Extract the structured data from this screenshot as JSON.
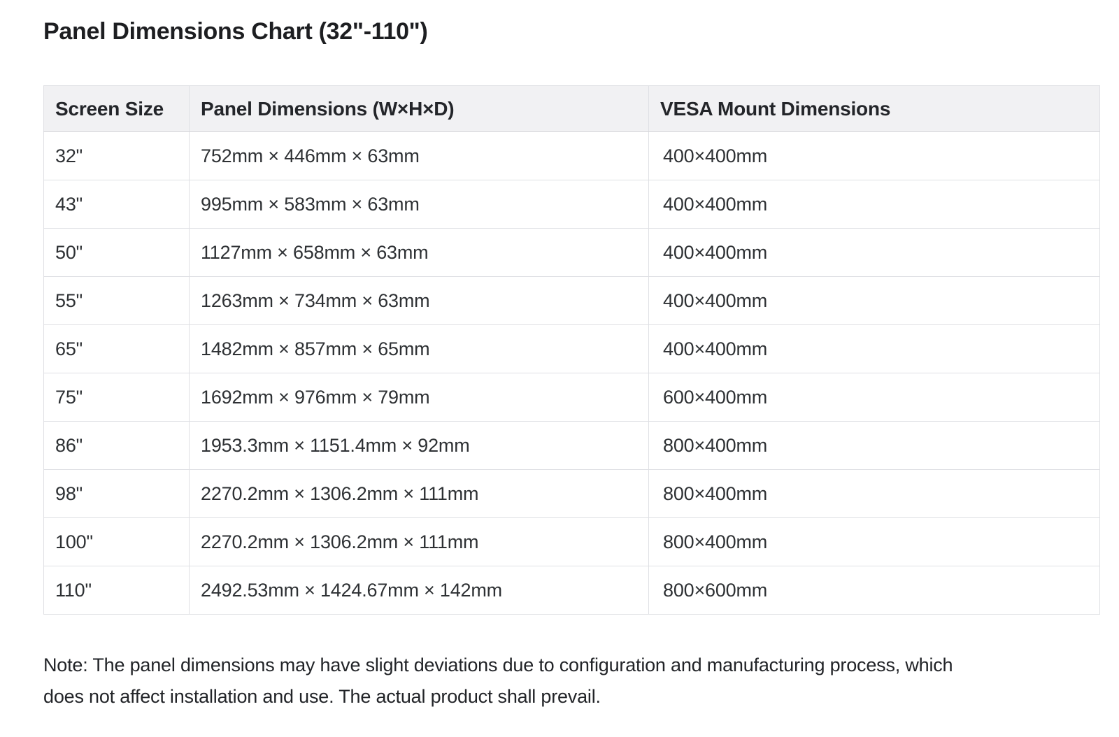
{
  "page": {
    "title": "Panel Dimensions Chart (32\"-110\")",
    "note_line1": "Note: The panel dimensions may have slight deviations due to configuration and manufacturing process, which",
    "note_line2": "does not affect installation and use. The actual product shall prevail."
  },
  "table": {
    "columns": [
      "Screen Size",
      "Panel Dimensions (W×H×D)",
      "VESA Mount Dimensions"
    ],
    "rows": [
      {
        "screen_size": "32\"",
        "panel_dimensions": "752mm × 446mm × 63mm",
        "vesa_mount": "400×400mm"
      },
      {
        "screen_size": "43\"",
        "panel_dimensions": "995mm × 583mm × 63mm",
        "vesa_mount": "400×400mm"
      },
      {
        "screen_size": "50\"",
        "panel_dimensions": "1127mm × 658mm × 63mm",
        "vesa_mount": "400×400mm"
      },
      {
        "screen_size": "55\"",
        "panel_dimensions": "1263mm × 734mm × 63mm",
        "vesa_mount": "400×400mm"
      },
      {
        "screen_size": "65\"",
        "panel_dimensions": "1482mm × 857mm × 65mm",
        "vesa_mount": "400×400mm"
      },
      {
        "screen_size": "75\"",
        "panel_dimensions": "1692mm × 976mm × 79mm",
        "vesa_mount": "600×400mm"
      },
      {
        "screen_size": "86\"",
        "panel_dimensions": "1953.3mm × 1151.4mm × 92mm",
        "vesa_mount": "800×400mm"
      },
      {
        "screen_size": "98\"",
        "panel_dimensions": "2270.2mm × 1306.2mm × 111mm",
        "vesa_mount": "800×400mm"
      },
      {
        "screen_size": "100\"",
        "panel_dimensions": "2270.2mm × 1306.2mm × 111mm",
        "vesa_mount": "800×400mm"
      },
      {
        "screen_size": "110\"",
        "panel_dimensions": "2492.53mm × 1424.67mm × 142mm",
        "vesa_mount": "800×600mm"
      }
    ]
  },
  "colors": {
    "header_background": "#f1f1f3",
    "table_border": "#dfe0e4",
    "heading_text": "#1d1e21",
    "cell_text": "#2e3134"
  }
}
